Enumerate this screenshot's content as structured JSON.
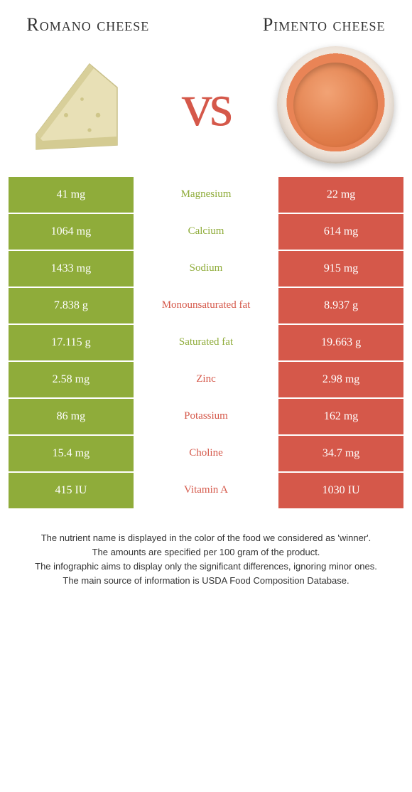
{
  "left_title": "Romano cheese",
  "right_title": "Pimento cheese",
  "vs_label": "vs",
  "colors": {
    "left": "#8fac3a",
    "right": "#d5584a",
    "mid_bg": "#ffffff"
  },
  "rows": [
    {
      "label": "Magnesium",
      "left": "41 mg",
      "right": "22 mg",
      "winner": "left"
    },
    {
      "label": "Calcium",
      "left": "1064 mg",
      "right": "614 mg",
      "winner": "left"
    },
    {
      "label": "Sodium",
      "left": "1433 mg",
      "right": "915 mg",
      "winner": "left"
    },
    {
      "label": "Monounsaturated fat",
      "left": "7.838 g",
      "right": "8.937 g",
      "winner": "right"
    },
    {
      "label": "Saturated fat",
      "left": "17.115 g",
      "right": "19.663 g",
      "winner": "left"
    },
    {
      "label": "Zinc",
      "left": "2.58 mg",
      "right": "2.98 mg",
      "winner": "right"
    },
    {
      "label": "Potassium",
      "left": "86 mg",
      "right": "162 mg",
      "winner": "right"
    },
    {
      "label": "Choline",
      "left": "15.4 mg",
      "right": "34.7 mg",
      "winner": "right"
    },
    {
      "label": "Vitamin A",
      "left": "415 IU",
      "right": "1030 IU",
      "winner": "right"
    }
  ],
  "footer_lines": [
    "The nutrient name is displayed in the color of the food we considered as 'winner'.",
    "The amounts are specified per 100 gram of the product.",
    "The infographic aims to display only the significant differences, ignoring minor ones.",
    "The main source of information is USDA Food Composition Database."
  ]
}
